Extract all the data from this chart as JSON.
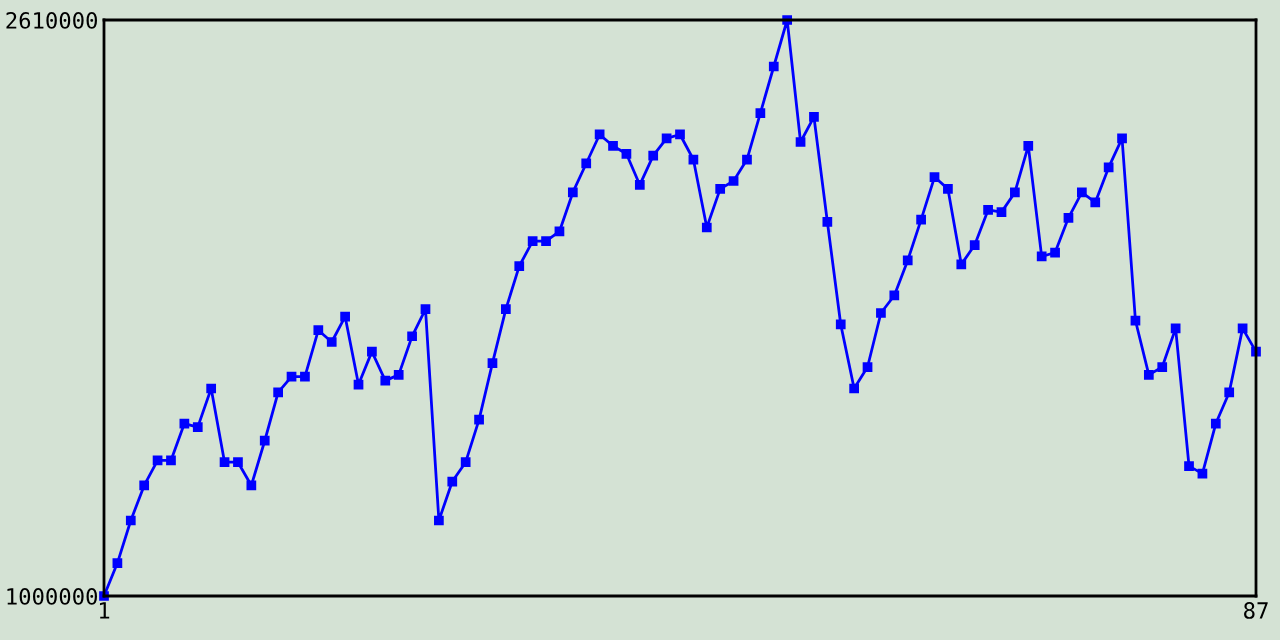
{
  "chart_data": {
    "type": "line",
    "x": [
      1,
      2,
      3,
      4,
      5,
      6,
      7,
      8,
      9,
      10,
      11,
      12,
      13,
      14,
      15,
      16,
      17,
      18,
      19,
      20,
      21,
      22,
      23,
      24,
      25,
      26,
      27,
      28,
      29,
      30,
      31,
      32,
      33,
      34,
      35,
      36,
      37,
      38,
      39,
      40,
      41,
      42,
      43,
      44,
      45,
      46,
      47,
      48,
      49,
      50,
      51,
      52,
      53,
      54,
      55,
      56,
      57,
      58,
      59,
      60,
      61,
      62,
      63,
      64,
      65,
      66,
      67,
      68,
      69,
      70,
      71,
      72,
      73,
      74,
      75,
      76,
      77,
      78,
      79,
      80,
      81,
      82,
      83,
      84,
      85,
      86,
      87
    ],
    "series": [
      {
        "color": "#0000ff",
        "values": [
          1000000,
          1092000,
          1211000,
          1309000,
          1379000,
          1379000,
          1482000,
          1472000,
          1580000,
          1374000,
          1374000,
          1309000,
          1434000,
          1569000,
          1613000,
          1613000,
          1743000,
          1710000,
          1781000,
          1591000,
          1683000,
          1602000,
          1618000,
          1726000,
          1802000,
          1211000,
          1320000,
          1374000,
          1493000,
          1651000,
          1802000,
          1922000,
          1992000,
          1992000,
          2019000,
          2128000,
          2209000,
          2290000,
          2258000,
          2236000,
          2149000,
          2231000,
          2279000,
          2290000,
          2220000,
          2030000,
          2138000,
          2160000,
          2220000,
          2350000,
          2480000,
          2610000,
          2269000,
          2339000,
          2046000,
          1759000,
          1580000,
          1640000,
          1791000,
          1840000,
          1938000,
          2052000,
          2171000,
          2138000,
          1927000,
          1981000,
          2079000,
          2073000,
          2128000,
          2258000,
          1949000,
          1960000,
          2057000,
          2128000,
          2100000,
          2198000,
          2279000,
          1770000,
          1618000,
          1640000,
          1748000,
          1363000,
          1342000,
          1482000,
          1569000,
          1748000,
          1683000
        ]
      }
    ],
    "xlim": [
      1,
      87
    ],
    "ylim": [
      1000000,
      2610000
    ],
    "xticks": [
      1,
      87
    ],
    "yticks": [
      1000000,
      2610000
    ],
    "marker": "square",
    "line_style": "solid"
  }
}
